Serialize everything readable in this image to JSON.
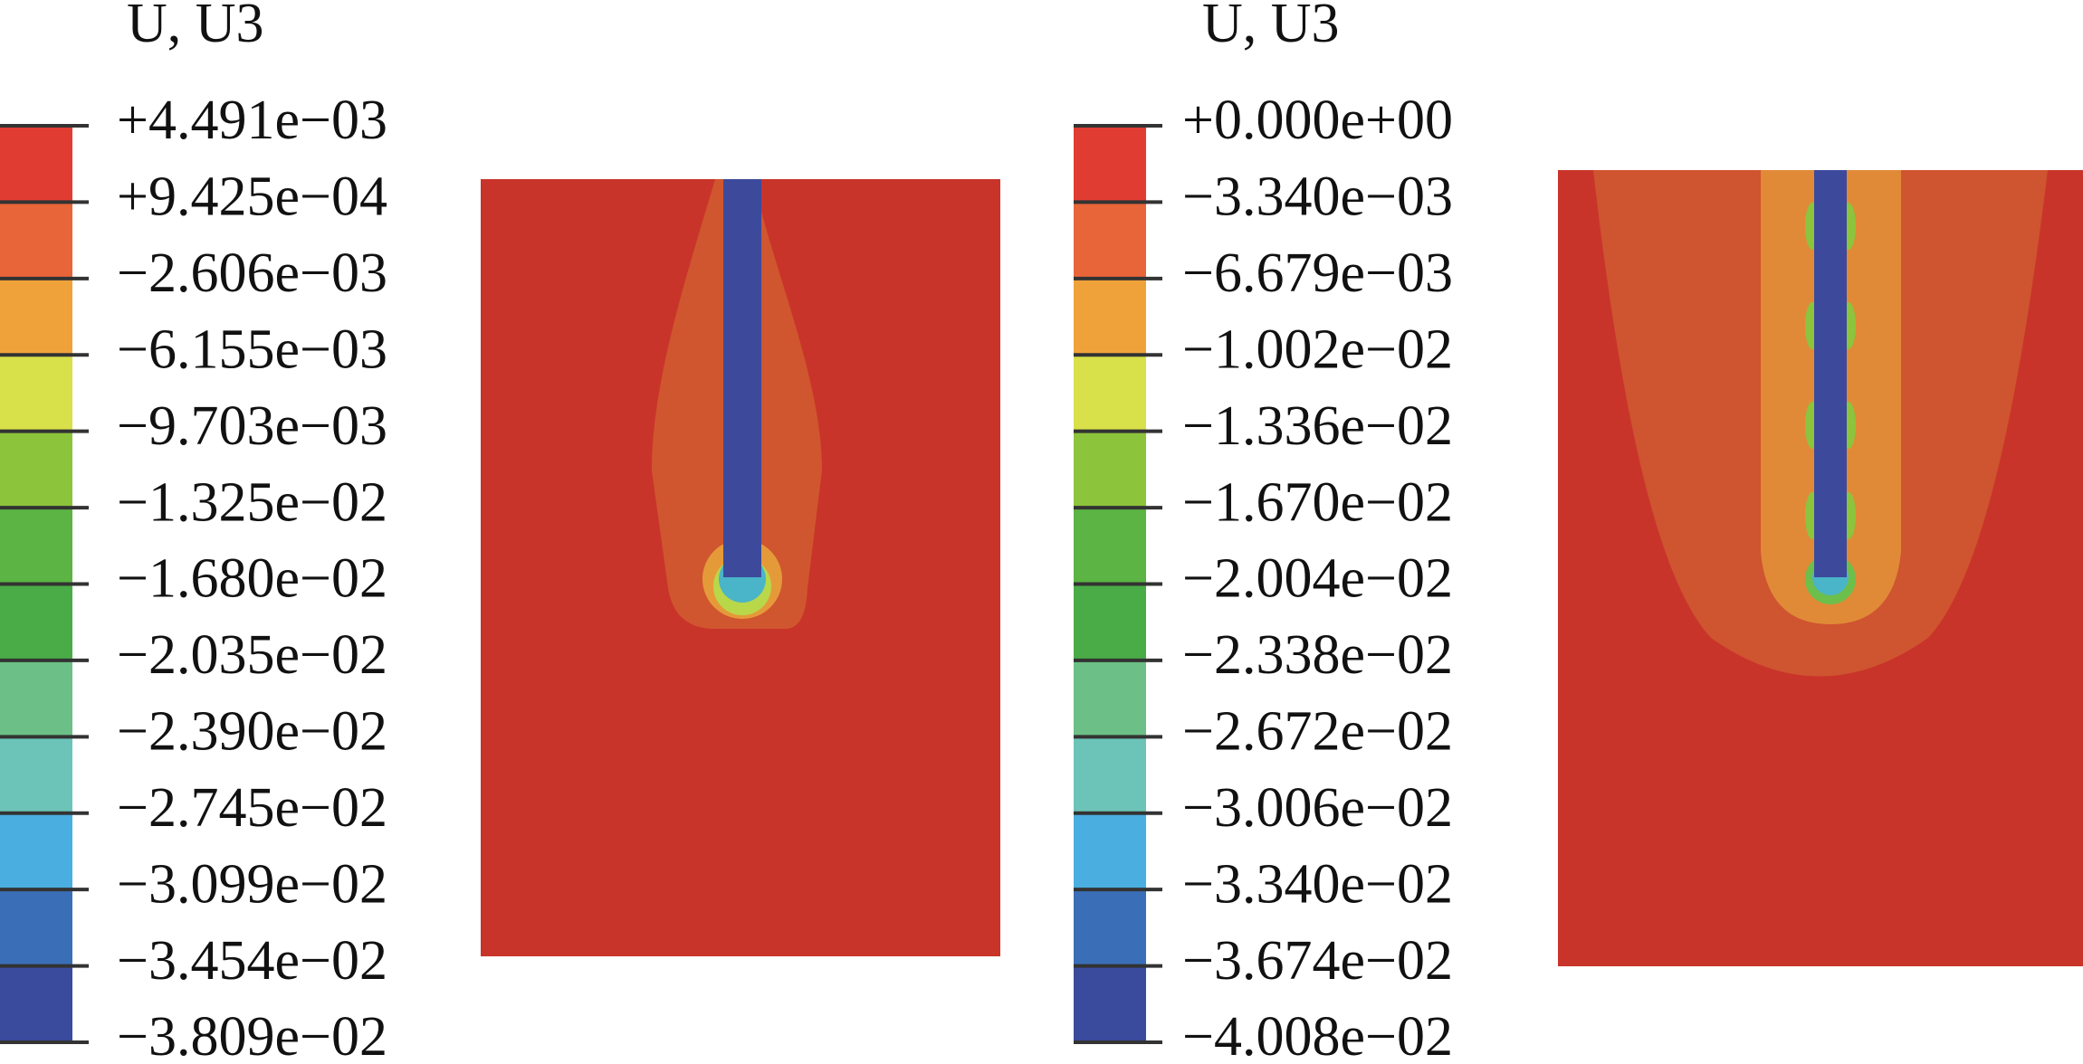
{
  "panels": [
    {
      "legend_title": "U, U3",
      "legend_labels": [
        "+4.491e−03",
        "+9.425e−04",
        "−2.606e−03",
        "−6.155e−03",
        "−9.703e−03",
        "−1.325e−02",
        "−1.680e−02",
        "−2.035e−02",
        "−2.390e−02",
        "−2.745e−02",
        "−3.099e−02",
        "−3.454e−02",
        "−3.809e−02"
      ],
      "band_colors": [
        "#e03c31",
        "#e8653a",
        "#f0a23a",
        "#d8e04a",
        "#8cc43c",
        "#5bb443",
        "#4aac47",
        "#6cbf86",
        "#6cc4b8",
        "#4aaee0",
        "#3a6fb8",
        "#3a4a9c"
      ]
    },
    {
      "legend_title": "U, U3",
      "legend_labels": [
        "+0.000e+00",
        "−3.340e−03",
        "−6.679e−03",
        "−1.002e−02",
        "−1.336e−02",
        "−1.670e−02",
        "−2.004e−02",
        "−2.338e−02",
        "−2.672e−02",
        "−3.006e−02",
        "−3.340e−02",
        "−3.674e−02",
        "−4.008e−02"
      ],
      "band_colors": [
        "#e03c31",
        "#e8653a",
        "#f0a23a",
        "#d8e04a",
        "#8cc43c",
        "#5bb443",
        "#4aac47",
        "#6cbf86",
        "#6cc4b8",
        "#4aaee0",
        "#3a6fb8",
        "#3a4a9c"
      ]
    }
  ]
}
